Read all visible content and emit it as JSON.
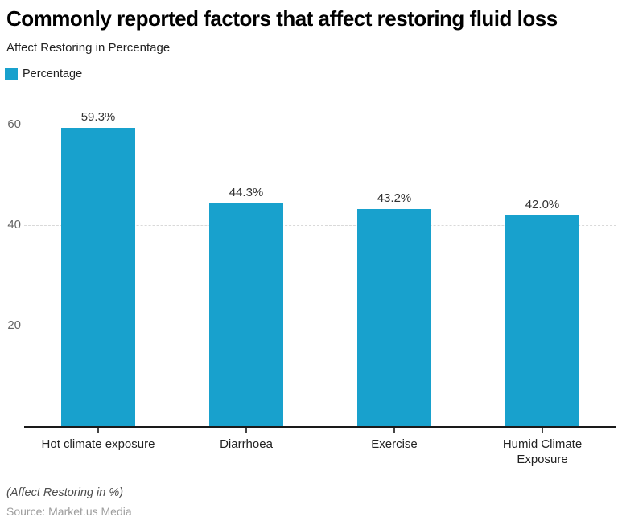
{
  "header": {
    "title": "Commonly reported factors that affect restoring fluid loss",
    "subtitle": "Affect Restoring in Percentage"
  },
  "legend": {
    "items": [
      {
        "label": "Percentage",
        "color": "#18a1cd"
      }
    ]
  },
  "chart_data": {
    "type": "bar",
    "title": "Commonly reported factors that affect restoring fluid loss",
    "subtitle": "Affect Restoring in Percentage",
    "series_name": "Percentage",
    "categories": [
      "Hot climate exposure",
      "Diarrhoea",
      "Exercise",
      "Humid Climate Exposure"
    ],
    "values": [
      59.3,
      44.3,
      43.2,
      42.0
    ],
    "value_labels": [
      "59.3%",
      "44.3%",
      "43.2%",
      "42.0%"
    ],
    "xlabel": "",
    "ylabel": "",
    "ylim": [
      0,
      60
    ],
    "yticks": [
      20,
      40,
      60
    ],
    "bar_color": "#18a1cd",
    "grid": true,
    "legend_position": "top-left"
  },
  "footer": {
    "note": "(Affect Restoring in %)",
    "source": "Source: Market.us Media"
  }
}
